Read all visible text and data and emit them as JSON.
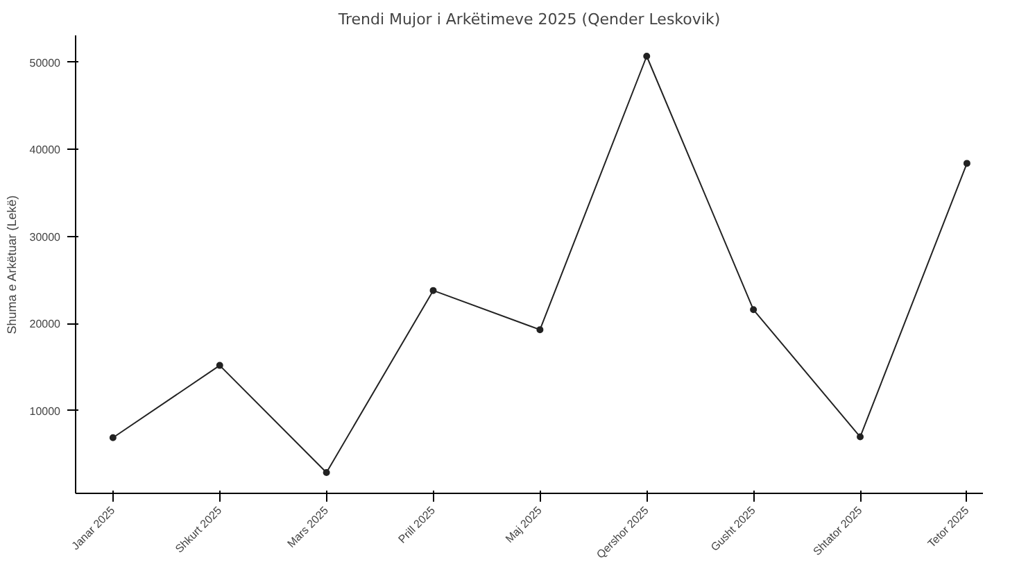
{
  "chart_data": {
    "type": "line",
    "title": "Trendi Mujor i Arkëtimeve 2025 (Qender Leskovik)",
    "ylabel": "Shuma e Arkëtuar (Lekë)",
    "categories": [
      "Janar 2025",
      "Shkurt 2025",
      "Mars 2025",
      "Prill 2025",
      "Maj 2025",
      "Qershor 2025",
      "Gusht 2025",
      "Shtator 2025",
      "Tetor 2025"
    ],
    "series": [
      {
        "color": "#222222",
        "values": [
          6900,
          15200,
          2900,
          23800,
          19300,
          50700,
          21600,
          7000,
          38400
        ]
      }
    ],
    "ylim": [
      510,
      53090
    ],
    "yticks": [
      10000,
      20000,
      30000,
      40000,
      50000
    ],
    "grid": false,
    "marker": "circle",
    "line_style": "solid"
  }
}
